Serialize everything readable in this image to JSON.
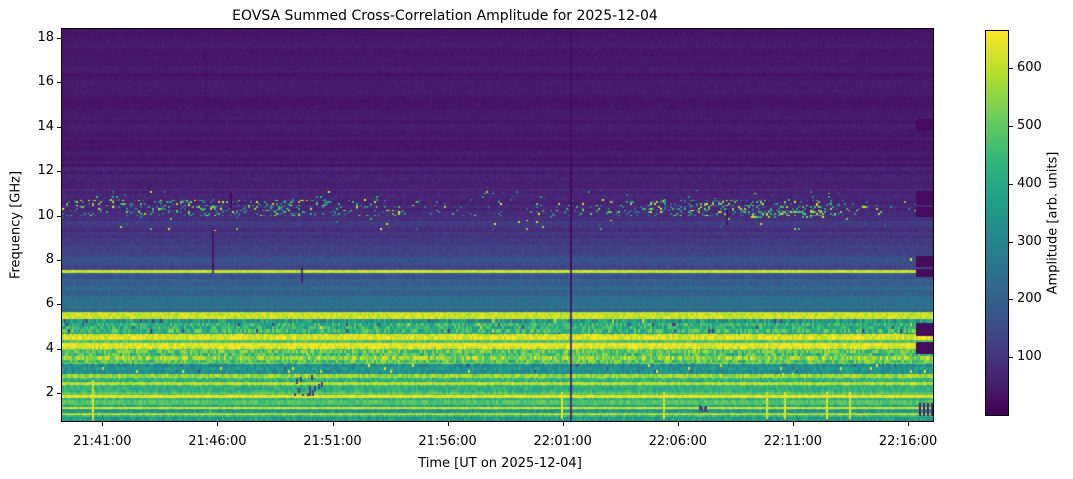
{
  "title": "EOVSA Summed Cross-Correlation Amplitude for 2025-12-04",
  "chart_data": {
    "type": "heatmap",
    "title": "EOVSA Summed Cross-Correlation Amplitude for 2025-12-04",
    "xlabel": "Time [UT on 2025-12-04]",
    "ylabel": "Frequency [GHz]",
    "x_ticks": [
      "21:41:00",
      "21:46:00",
      "21:51:00",
      "21:56:00",
      "22:01:00",
      "22:06:00",
      "22:11:00",
      "22:16:00"
    ],
    "y_ticks": [
      2,
      4,
      6,
      8,
      10,
      12,
      14,
      16,
      18
    ],
    "time_axis": {
      "start": "21:39:15",
      "end": "22:17:05"
    },
    "freq_axis": {
      "min": 0.75,
      "max": 18.4,
      "unit": "GHz"
    },
    "amplitude_scale": {
      "min": 0,
      "max": 664
    },
    "colorbar": {
      "label": "Amplitude [arb. units]",
      "ticks": [
        100,
        200,
        300,
        400,
        500,
        600
      ]
    },
    "colormap": {
      "name": "viridis",
      "stops": [
        "#440154",
        "#482878",
        "#3e4a89",
        "#31688e",
        "#26828e",
        "#1f9e89",
        "#35b779",
        "#6dcd59",
        "#b4de2c",
        "#fde725"
      ]
    },
    "spectrum_bands": [
      {
        "f_hi": 18.4,
        "f_lo": 12.2,
        "value": 42,
        "stripe": 10,
        "noise": 6
      },
      {
        "f_hi": 12.2,
        "f_lo": 11.2,
        "value": 58,
        "stripe": 12,
        "noise": 8
      },
      {
        "f_hi": 11.2,
        "f_lo": 9.95,
        "value": 74,
        "stripe": 14,
        "noise": 10
      },
      {
        "f_hi": 9.95,
        "f_lo": 9.0,
        "value": 100,
        "stripe": 22,
        "noise": 12
      },
      {
        "f_hi": 9.0,
        "f_lo": 8.15,
        "value": 128,
        "stripe": 24,
        "noise": 12
      },
      {
        "f_hi": 8.15,
        "f_lo": 7.56,
        "value": 158,
        "stripe": 26,
        "noise": 12
      },
      {
        "f_hi": 7.56,
        "f_lo": 7.42,
        "value": 600,
        "stripe": 25,
        "noise": 25
      },
      {
        "f_hi": 7.42,
        "f_lo": 6.75,
        "value": 190,
        "stripe": 28,
        "noise": 14
      },
      {
        "f_hi": 6.75,
        "f_lo": 6.2,
        "value": 222,
        "stripe": 30,
        "noise": 14
      },
      {
        "f_hi": 6.2,
        "f_lo": 5.68,
        "value": 242,
        "stripe": 34,
        "noise": 16
      },
      {
        "f_hi": 5.68,
        "f_lo": 5.36,
        "value": 612,
        "stripe": 45,
        "noise": 40
      },
      {
        "f_hi": 5.36,
        "f_lo": 4.66,
        "value": 420,
        "stripe": 60,
        "noise": 90,
        "dots": [
          {
            "density": 0.02,
            "value": 140,
            "spread": 60
          },
          {
            "density": 0.008,
            "value": 610,
            "spread": 60
          }
        ]
      },
      {
        "f_hi": 4.66,
        "f_lo": 4.38,
        "value": 628,
        "stripe": 28,
        "noise": 45
      },
      {
        "f_hi": 4.38,
        "f_lo": 4.27,
        "value": 490,
        "stripe": 25,
        "noise": 40
      },
      {
        "f_hi": 4.27,
        "f_lo": 3.98,
        "value": 632,
        "stripe": 22,
        "noise": 45
      },
      {
        "f_hi": 3.98,
        "f_lo": 3.32,
        "value": 520,
        "stripe": 70,
        "noise": 95
      },
      {
        "f_hi": 3.32,
        "f_lo": 2.86,
        "value": 330,
        "stripe": 45,
        "noise": 55,
        "dots": [
          {
            "density": 0.012,
            "value": 615,
            "spread": 60
          },
          {
            "density": 0.01,
            "value": 170,
            "spread": 50
          }
        ]
      },
      {
        "f_hi": 2.86,
        "f_lo": 2.68,
        "value": 560,
        "stripe": 40,
        "noise": 60
      },
      {
        "f_hi": 2.68,
        "f_lo": 2.52,
        "value": 430,
        "stripe": 40,
        "noise": 45
      },
      {
        "f_hi": 2.52,
        "f_lo": 2.38,
        "value": 590,
        "stripe": 30,
        "noise": 40
      },
      {
        "f_hi": 2.38,
        "f_lo": 2.06,
        "value": 415,
        "stripe": 40,
        "noise": 45
      },
      {
        "f_hi": 2.06,
        "f_lo": 1.92,
        "value": 480,
        "stripe": 30,
        "noise": 40
      },
      {
        "f_hi": 1.92,
        "f_lo": 1.8,
        "value": 640,
        "stripe": 18,
        "noise": 30
      },
      {
        "f_hi": 1.8,
        "f_lo": 1.46,
        "value": 450,
        "stripe": 40,
        "noise": 40
      },
      {
        "f_hi": 1.46,
        "f_lo": 1.36,
        "value": 360,
        "stripe": 30,
        "noise": 32
      },
      {
        "f_hi": 1.36,
        "f_lo": 1.27,
        "value": 615,
        "stripe": 22,
        "noise": 30
      },
      {
        "f_hi": 1.27,
        "f_lo": 1.12,
        "value": 385,
        "stripe": 35,
        "noise": 35
      },
      {
        "f_hi": 1.12,
        "f_lo": 1.04,
        "value": 590,
        "stripe": 25,
        "noise": 35
      },
      {
        "f_hi": 1.04,
        "f_lo": 0.75,
        "value": 405,
        "stripe": 45,
        "noise": 45
      }
    ],
    "rfi_speckle": {
      "main": {
        "f_hi": 10.72,
        "f_lo": 9.98,
        "base_density": 0.02,
        "density_profile": [
          {
            "center": 0.18,
            "width": 0.17,
            "density": 0.26
          },
          {
            "center": 0.76,
            "width": 0.14,
            "density": 0.3
          }
        ]
      },
      "above": {
        "f_hi": 11.15,
        "f_lo": 10.72,
        "density": 0.012
      },
      "below": {
        "f_hi": 9.98,
        "f_lo": 9.3,
        "density": 0.008
      },
      "hot_patch": {
        "t_start": "22:09:10",
        "t_end": "22:12:20",
        "f_hi": 10.22,
        "f_lo": 9.9,
        "density": 0.3
      }
    },
    "features": {
      "dropout_lines": [
        {
          "time": "22:01:19"
        }
      ],
      "bright_vertical_lines": [
        {
          "time": "21:40:33",
          "f_hi": 2.6,
          "f_lo": 0.8,
          "strength": "strong"
        },
        {
          "time": "21:45:41",
          "f_hi": 2.6,
          "f_lo": 0.9,
          "strength": "faint"
        },
        {
          "time": "22:00:56",
          "f_hi": 2.05,
          "f_lo": 0.9,
          "strength": "strong"
        },
        {
          "time": "22:05:21",
          "f_hi": 2.05,
          "f_lo": 0.9,
          "strength": "strong"
        },
        {
          "time": "22:07:08",
          "f_hi": 1.9,
          "f_lo": 0.9,
          "strength": "faint"
        },
        {
          "time": "22:09:50",
          "f_hi": 2.05,
          "f_lo": 0.9,
          "strength": "strong"
        },
        {
          "time": "22:10:37",
          "f_hi": 2.05,
          "f_lo": 0.9,
          "strength": "strong"
        },
        {
          "time": "22:12:26",
          "f_hi": 2.05,
          "f_lo": 0.9,
          "strength": "strong"
        },
        {
          "time": "22:13:26",
          "f_hi": 2.05,
          "f_lo": 0.9,
          "strength": "strong"
        }
      ],
      "dark_dashes": [
        {
          "time": "21:45:46",
          "f_hi": 9.3,
          "f_lo": 7.4,
          "strength": "strong"
        },
        {
          "time": "21:46:33",
          "f_hi": 11.0,
          "f_lo": 10.4,
          "strength": "strong"
        },
        {
          "time": "21:45:28",
          "f_hi": 17.4,
          "f_lo": 14.2,
          "strength": "faint"
        },
        {
          "time": "21:49:38",
          "f_hi": 7.7,
          "f_lo": 7.0,
          "strength": "strong"
        },
        {
          "time": "22:08:05",
          "f_hi": 10.4,
          "f_lo": 9.6,
          "strength": "strong"
        }
      ],
      "dash_clusters": [
        {
          "t_start": "21:49:15",
          "t_end": "21:50:50",
          "f_hi": 2.85,
          "f_lo": 1.9,
          "count": 14
        },
        {
          "t_start": "22:06:55",
          "t_end": "22:07:20",
          "f_hi": 1.5,
          "f_lo": 1.2,
          "count": 5
        }
      ],
      "right_edge_blocks": {
        "t_start": "22:16:21",
        "blocks": [
          {
            "f_hi": 14.35,
            "f_lo": 13.85
          },
          {
            "f_hi": 11.1,
            "f_lo": 10.5
          },
          {
            "f_hi": 10.4,
            "f_lo": 10.0
          },
          {
            "f_hi": 8.2,
            "f_lo": 7.75
          },
          {
            "f_hi": 7.6,
            "f_lo": 7.28
          },
          {
            "f_hi": 5.15,
            "f_lo": 4.62
          },
          {
            "f_hi": 4.3,
            "f_lo": 3.82
          }
        ]
      },
      "bottom_right_tick_times": [
        "22:16:28",
        "22:16:39",
        "22:16:49",
        "22:16:59"
      ],
      "bottom_right_tick_band": {
        "f_hi": 1.55,
        "f_lo": 1.0
      },
      "bright_dot": {
        "time": "22:16:05",
        "f": 8.05
      }
    }
  }
}
